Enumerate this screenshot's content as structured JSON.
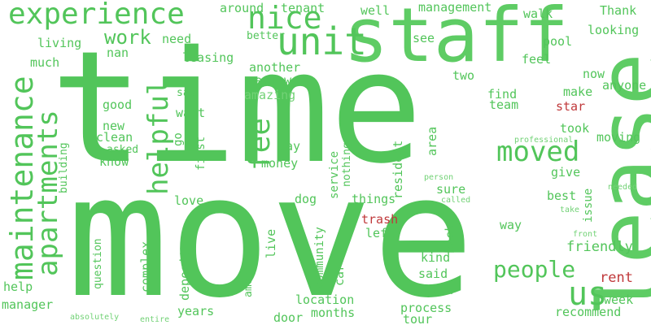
{
  "colors": {
    "positive": "#52c55a",
    "negative": "#c0393b",
    "background": "#ffffff"
  },
  "words": {
    "time": "time",
    "move": "move",
    "staff": "staff",
    "lease": "lease",
    "unit": "unit",
    "experience": "experience",
    "nice": "nice",
    "maintenance": "maintenance",
    "apartments": "apartments",
    "helpful": "helpful",
    "moved": "moved",
    "fee": "fee",
    "work": "work",
    "people": "people",
    "us": "us",
    "around": "around",
    "tenant": "tenant",
    "well": "well",
    "management": "management",
    "walk": "walk",
    "thank": "Thank",
    "looking": "looking",
    "better": "better",
    "need": "need",
    "see": "see",
    "living": "living",
    "nan": "nan",
    "leasing": "leasing",
    "pool": "pool",
    "feel": "feel",
    "much": "much",
    "another": "another",
    "review": "review",
    "amazing": "amazing",
    "two": "two",
    "now": "now",
    "anyone": "anyone",
    "say": "say",
    "make": "make",
    "find": "find",
    "team": "team",
    "star": "star",
    "good": "good",
    "want": "want",
    "new": "new",
    "clean": "clean",
    "go": "go",
    "first": "first",
    "asked": "asked",
    "pay": "pay",
    "took": "took",
    "professional": "professional",
    "moving": "moving",
    "know": "know",
    "money": "money",
    "building": "building",
    "nothing": "nothing",
    "service": "service",
    "resident": "resident",
    "area": "area",
    "give": "give",
    "person": "person",
    "needed": "needed",
    "called": "called",
    "sure": "sure",
    "best": "best",
    "issue": "issue",
    "love": "love",
    "dog": "dog",
    "things": "things",
    "take": "take",
    "trash": "trash",
    "way": "way",
    "front": "front",
    "friendly": "friendly",
    "complex": "complex",
    "question": "question",
    "deposit": "deposit",
    "amenities": "amenities",
    "live": "live",
    "community": "community",
    "care": "care",
    "left": "left",
    "back": "back",
    "kind": "kind",
    "said": "said",
    "rent": "rent",
    "help": "help",
    "lived": "lived",
    "manager": "manager",
    "location": "location",
    "process": "process",
    "week": "week",
    "years": "years",
    "months": "months",
    "recommend": "recommend",
    "door": "door",
    "tour": "tour",
    "absolutely": "absolutely",
    "entire": "entire"
  }
}
